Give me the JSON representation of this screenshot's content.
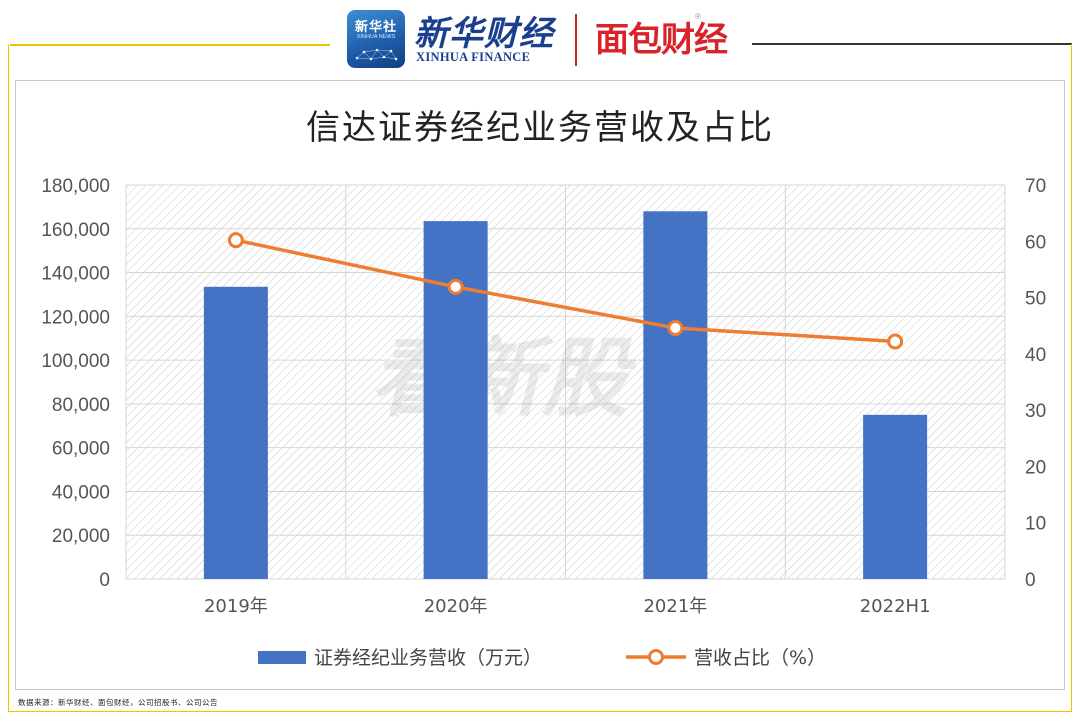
{
  "branding": {
    "xinhua_badge": "新华社",
    "xinhua_badge_sub": "XINHUA NEWS",
    "xinhua_finance_cn": "新华财经",
    "xinhua_finance_en": "XINHUA FINANCE",
    "mianbao": "面包财经",
    "registered_mark": "®"
  },
  "watermark": "看新股",
  "source_note": "数据来源：新华财经、面包财经，公司招股书、公司公告",
  "colors": {
    "bar": "#4472c4",
    "line": "#ed7d31",
    "gold_frame": "#f2c200",
    "brand_red": "#d8232a",
    "brand_blue": "#1b3f8f"
  },
  "chart_data": {
    "type": "bar",
    "title": "信达证券经纪业务营收及占比",
    "categories": [
      "2019年",
      "2020年",
      "2021年",
      "2022H1"
    ],
    "y_left": {
      "ylim": [
        0,
        180000
      ],
      "ticks": [
        "0",
        "20,000",
        "40,000",
        "60,000",
        "80,000",
        "100,000",
        "120,000",
        "140,000",
        "160,000",
        "180,000"
      ],
      "tick_values": [
        0,
        20000,
        40000,
        60000,
        80000,
        100000,
        120000,
        140000,
        160000,
        180000
      ]
    },
    "y_right": {
      "ylim": [
        0,
        70
      ],
      "ticks": [
        "0",
        "10",
        "20",
        "30",
        "40",
        "50",
        "60",
        "70"
      ],
      "tick_values": [
        0,
        10,
        20,
        30,
        40,
        50,
        60,
        70
      ]
    },
    "series": [
      {
        "name": "证券经纪业务营收（万元）",
        "type": "bar",
        "axis": "left",
        "values": [
          133500,
          163500,
          168000,
          75000
        ]
      },
      {
        "name": "营收占比（%）",
        "type": "line",
        "axis": "right",
        "marker": "circle",
        "values": [
          60.2,
          51.9,
          44.6,
          42.2
        ]
      }
    ],
    "grid": true,
    "legend_position": "bottom"
  }
}
